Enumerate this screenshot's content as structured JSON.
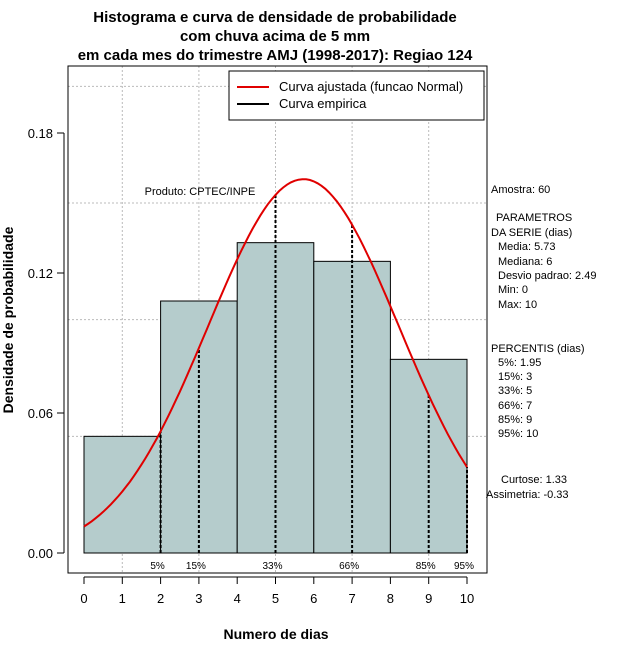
{
  "chart_data": {
    "type": "histogram",
    "title_lines": [
      "Histograma e curva de densidade de probabilidade",
      "com chuva acima de 5 mm",
      "em cada mes do trimestre AMJ (1998-2017): Regiao 124"
    ],
    "xlabel": "Numero de dias",
    "ylabel": "Densidade de probabilidade",
    "xlim": [
      0,
      10
    ],
    "ylim": [
      0,
      0.2
    ],
    "x_ticks": [
      "0",
      "1",
      "2",
      "3",
      "4",
      "5",
      "6",
      "7",
      "8",
      "9",
      "10"
    ],
    "y_ticks": [
      "0.00",
      "0.06",
      "0.12",
      "0.18"
    ],
    "bins": [
      {
        "x0": 0,
        "x1": 2,
        "density": 0.05
      },
      {
        "x0": 2,
        "x1": 4,
        "density": 0.108
      },
      {
        "x0": 4,
        "x1": 6,
        "density": 0.133
      },
      {
        "x0": 6,
        "x1": 8,
        "density": 0.125
      },
      {
        "x0": 8,
        "x1": 10,
        "density": 0.083
      }
    ],
    "fitted_curve": {
      "label": "Curva ajustada (funcao Normal)",
      "mean": 5.73,
      "sd": 2.49,
      "color": "#e00000"
    },
    "empirical_curve": {
      "label": "Curva empirica",
      "color": "#000000"
    },
    "percentile_lines": [
      {
        "label": "5%",
        "x": 2
      },
      {
        "label": "15%",
        "x": 3
      },
      {
        "label": "33%",
        "x": 5
      },
      {
        "label": "66%",
        "x": 7
      },
      {
        "label": "85%",
        "x": 9
      },
      {
        "label": "95%",
        "x": 10
      }
    ],
    "product_label": "Produto: CPTEC/INPE",
    "bar_fill": "#b5cccc"
  },
  "stats": {
    "amostra": "Amostra: 60",
    "param_header": [
      "PARAMETROS",
      "DA SERIE (dias)"
    ],
    "params": [
      "Media: 5.73",
      "Mediana: 6",
      "Desvio padrao: 2.49",
      "Min: 0",
      "Max: 10"
    ],
    "perc_header": "PERCENTIS (dias)",
    "percentis": [
      "5%: 1.95",
      "15%: 3",
      "33%: 5",
      "66%: 7",
      "85%: 9",
      "95%: 10"
    ],
    "curtose": "Curtose: 1.33",
    "assimetria": "Assimetria: -0.33"
  }
}
